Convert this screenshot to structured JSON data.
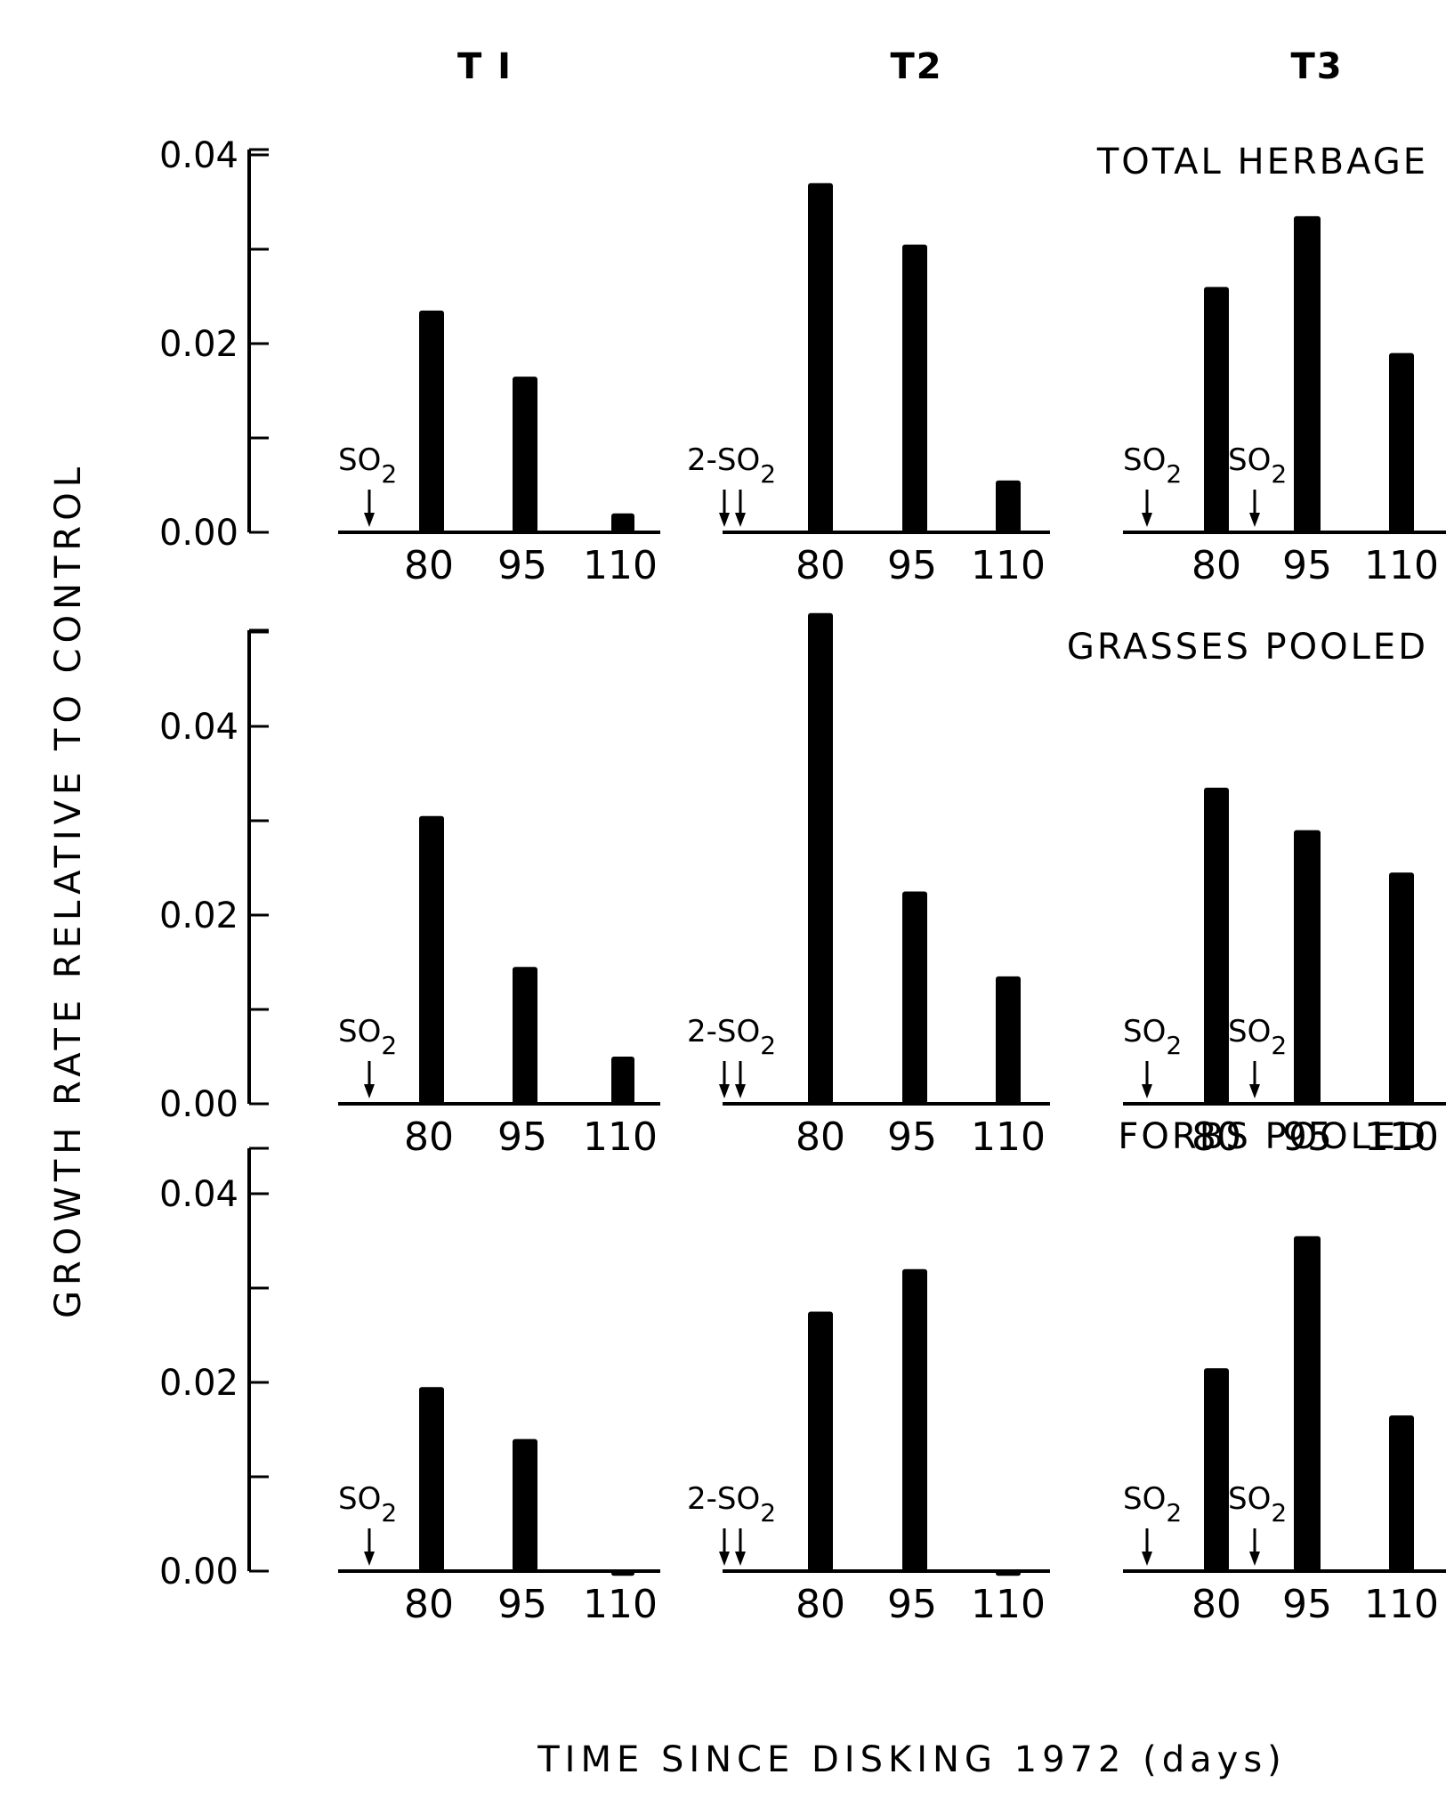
{
  "columns": [
    "T I",
    "T2",
    "T3"
  ],
  "y_axis_label": "GROWTH RATE RELATIVE TO CONTROL",
  "x_axis_label": "TIME SINCE DISKING 1972 (days)",
  "treatment_labels": {
    "T I": [
      "SO2"
    ],
    "T2": [
      "2-SO2"
    ],
    "T3": [
      "SO2",
      "SO2"
    ]
  },
  "chart_data": [
    {
      "type": "bar",
      "title": "TOTAL HERBAGE",
      "categories": [
        "80",
        "95",
        "110"
      ],
      "series": [
        {
          "name": "T I",
          "values": [
            0.0235,
            0.0165,
            0.002
          ]
        },
        {
          "name": "T2",
          "values": [
            0.037,
            0.0305,
            0.0055
          ]
        },
        {
          "name": "T3",
          "values": [
            0.026,
            0.0335,
            0.019
          ]
        }
      ],
      "ylim": [
        0,
        0.04
      ],
      "yticks": [
        "0.00",
        "0.02",
        "0.04"
      ]
    },
    {
      "type": "bar",
      "title": "GRASSES POOLED",
      "categories": [
        "80",
        "95",
        "110"
      ],
      "series": [
        {
          "name": "T I",
          "values": [
            0.0305,
            0.0145,
            0.005
          ]
        },
        {
          "name": "T2",
          "values": [
            0.052,
            0.0225,
            0.0135
          ]
        },
        {
          "name": "T3",
          "values": [
            0.0335,
            0.029,
            0.0245
          ]
        }
      ],
      "ylim": [
        0,
        0.05
      ],
      "yticks": [
        "0.00",
        "0.02",
        "0.04"
      ]
    },
    {
      "type": "bar",
      "title": "FORBS POOLED",
      "categories": [
        "80",
        "95",
        "110"
      ],
      "series": [
        {
          "name": "T I",
          "values": [
            0.0195,
            0.014,
            -0.0005
          ]
        },
        {
          "name": "T2",
          "values": [
            0.0275,
            0.032,
            -0.0005
          ]
        },
        {
          "name": "T3",
          "values": [
            0.0215,
            0.0355,
            0.0165
          ]
        }
      ],
      "ylim": [
        0,
        0.04
      ],
      "yticks": [
        "0.00",
        "0.02",
        "0.04"
      ]
    }
  ]
}
